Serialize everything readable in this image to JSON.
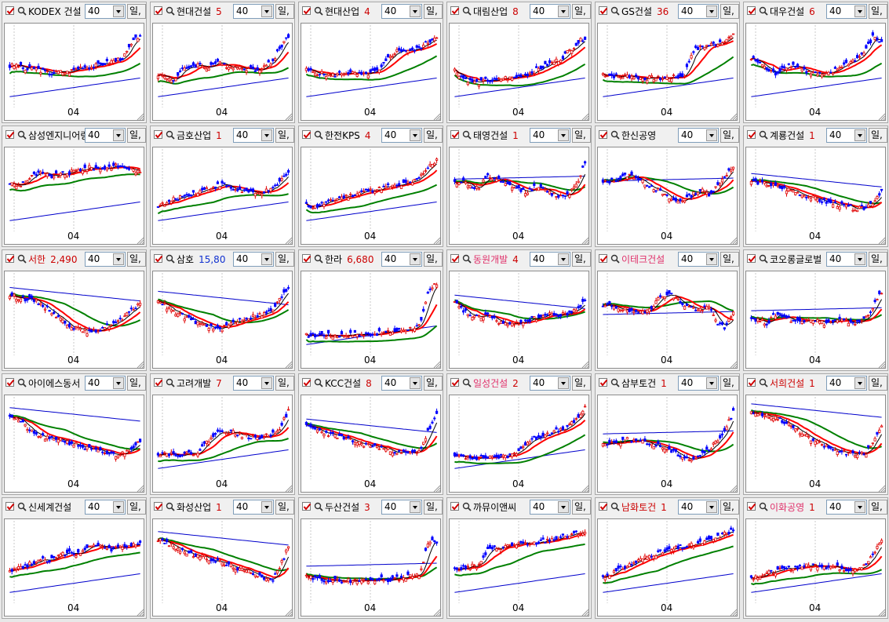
{
  "settings": {
    "period_value": "40",
    "period_button_label": "일,",
    "x_axis_label": "04",
    "colors": {
      "candle_up": "#e00000",
      "candle_down": "#0000ff",
      "ma_short": "#000000",
      "ma_red": "#ff0000",
      "ma_green": "#008000",
      "ma_blue": "#0000cc"
    }
  },
  "cells": [
    {
      "name": "KODEX 건설",
      "price": "",
      "name_color": "black",
      "price_color": "red",
      "shape": [
        50,
        52,
        45,
        48,
        44,
        40,
        43,
        42,
        46,
        50,
        49,
        52,
        55,
        58,
        62,
        80,
        92
      ],
      "trend": "up"
    },
    {
      "name": "현대건설",
      "price": "5",
      "name_color": "black",
      "price_color": "red",
      "shape": [
        40,
        35,
        32,
        45,
        50,
        52,
        48,
        55,
        52,
        50,
        49,
        47,
        45,
        50,
        55,
        75,
        90
      ],
      "trend": "up"
    },
    {
      "name": "현대산업",
      "price": "4",
      "name_color": "black",
      "price_color": "red",
      "shape": [
        45,
        42,
        40,
        38,
        40,
        42,
        40,
        38,
        42,
        44,
        60,
        70,
        72,
        70,
        75,
        82,
        90
      ],
      "trend": "up"
    },
    {
      "name": "대림산업",
      "price": "8",
      "name_color": "black",
      "price_color": "red",
      "shape": [
        45,
        35,
        30,
        28,
        32,
        30,
        35,
        34,
        38,
        40,
        45,
        50,
        55,
        60,
        70,
        80,
        88
      ],
      "trend": "up"
    },
    {
      "name": "GS건설",
      "price": "36",
      "name_color": "black",
      "price_color": "red",
      "shape": [
        40,
        38,
        36,
        38,
        36,
        34,
        35,
        34,
        35,
        36,
        38,
        70,
        75,
        78,
        80,
        85,
        90
      ],
      "trend": "up"
    },
    {
      "name": "대우건설",
      "price": "6",
      "name_color": "black",
      "price_color": "red",
      "shape": [
        60,
        55,
        45,
        40,
        50,
        52,
        48,
        42,
        40,
        38,
        42,
        50,
        55,
        60,
        70,
        90,
        80
      ],
      "trend": "up"
    },
    {
      "name": "삼성엔지니어링",
      "price": "",
      "name_color": "black",
      "price_color": "red",
      "shape": [
        60,
        55,
        62,
        70,
        72,
        68,
        70,
        72,
        75,
        78,
        80,
        78,
        80,
        82,
        80,
        78,
        72
      ],
      "trend": "up"
    },
    {
      "name": "금호산업",
      "price": "1",
      "name_color": "black",
      "price_color": "red",
      "shape": [
        30,
        32,
        38,
        42,
        45,
        48,
        52,
        55,
        58,
        52,
        50,
        48,
        45,
        48,
        50,
        62,
        72
      ],
      "trend": "up"
    },
    {
      "name": "한전KPS",
      "price": "4",
      "name_color": "black",
      "price_color": "red",
      "shape": [
        30,
        28,
        32,
        35,
        40,
        42,
        45,
        48,
        50,
        52,
        55,
        55,
        58,
        60,
        70,
        80,
        90
      ],
      "trend": "up"
    },
    {
      "name": "태영건설",
      "price": "1",
      "name_color": "black",
      "price_color": "red",
      "shape": [
        60,
        62,
        55,
        52,
        68,
        65,
        58,
        55,
        50,
        48,
        55,
        50,
        45,
        42,
        45,
        60,
        85
      ],
      "trend": "flat"
    },
    {
      "name": "한신공영",
      "price": "",
      "name_color": "black",
      "price_color": "red",
      "shape": [
        60,
        62,
        65,
        70,
        68,
        60,
        55,
        48,
        40,
        35,
        38,
        45,
        50,
        45,
        55,
        70,
        80
      ],
      "trend": "flat"
    },
    {
      "name": "계룡건설",
      "price": "1",
      "name_color": "black",
      "price_color": "red",
      "shape": [
        62,
        60,
        58,
        55,
        52,
        50,
        45,
        42,
        38,
        35,
        32,
        30,
        28,
        25,
        28,
        35,
        50
      ],
      "trend": "down"
    },
    {
      "name": "서한",
      "price": "2,490",
      "name_color": "red",
      "price_color": "red",
      "shape": [
        75,
        72,
        70,
        68,
        62,
        55,
        45,
        38,
        32,
        28,
        26,
        30,
        35,
        38,
        45,
        55,
        65
      ],
      "trend": "down"
    },
    {
      "name": "삼호",
      "price": "15,80",
      "name_color": "black",
      "price_color": "blue",
      "shape": [
        70,
        60,
        52,
        48,
        42,
        38,
        35,
        30,
        32,
        38,
        42,
        45,
        48,
        50,
        55,
        70,
        85
      ],
      "trend": "down"
    },
    {
      "name": "한라",
      "price": "6,680",
      "name_color": "black",
      "price_color": "red",
      "shape": [
        22,
        22,
        23,
        22,
        22,
        23,
        24,
        23,
        24,
        25,
        26,
        28,
        30,
        32,
        35,
        80,
        90
      ],
      "trend": "up"
    },
    {
      "name": "동원개발",
      "price": "4",
      "name_color": "pink",
      "price_color": "red",
      "shape": [
        65,
        55,
        48,
        45,
        50,
        42,
        38,
        35,
        40,
        42,
        45,
        48,
        50,
        48,
        52,
        55,
        70
      ],
      "trend": "down"
    },
    {
      "name": "이테크건설",
      "price": "",
      "name_color": "pink",
      "price_color": "red",
      "shape": [
        60,
        62,
        58,
        55,
        50,
        55,
        60,
        72,
        78,
        70,
        62,
        58,
        55,
        60,
        40,
        30,
        55
      ],
      "trend": "flat"
    },
    {
      "name": "코오롱글로벌",
      "price": "",
      "name_color": "black",
      "price_color": "red",
      "shape": [
        45,
        42,
        38,
        50,
        48,
        42,
        40,
        45,
        42,
        38,
        40,
        42,
        40,
        38,
        45,
        60,
        80
      ],
      "trend": "flat"
    },
    {
      "name": "아이에스동서",
      "price": "",
      "name_color": "black",
      "price_color": "red",
      "shape": [
        80,
        75,
        65,
        55,
        52,
        48,
        50,
        45,
        42,
        38,
        35,
        32,
        30,
        28,
        30,
        38,
        48
      ],
      "trend": "down"
    },
    {
      "name": "고려개발",
      "price": "7",
      "name_color": "black",
      "price_color": "red",
      "shape": [
        30,
        30,
        29,
        28,
        30,
        32,
        45,
        55,
        60,
        58,
        55,
        52,
        50,
        52,
        55,
        65,
        85
      ],
      "trend": "up"
    },
    {
      "name": "KCC건설",
      "price": "8",
      "name_color": "black",
      "price_color": "red",
      "shape": [
        65,
        62,
        58,
        55,
        52,
        48,
        45,
        42,
        40,
        38,
        35,
        32,
        30,
        30,
        35,
        60,
        80
      ],
      "trend": "down"
    },
    {
      "name": "일성건설",
      "price": "2",
      "name_color": "pink",
      "price_color": "red",
      "shape": [
        25,
        26,
        25,
        24,
        25,
        26,
        25,
        28,
        35,
        45,
        50,
        55,
        58,
        60,
        65,
        75,
        90
      ],
      "trend": "up"
    },
    {
      "name": "삼부토건",
      "price": "1",
      "name_color": "black",
      "price_color": "red",
      "shape": [
        42,
        44,
        45,
        48,
        46,
        44,
        42,
        40,
        35,
        30,
        25,
        22,
        28,
        35,
        45,
        60,
        85
      ],
      "trend": "flat"
    },
    {
      "name": "서희건설",
      "price": "1",
      "name_color": "red",
      "price_color": "red",
      "shape": [
        85,
        82,
        80,
        78,
        72,
        65,
        58,
        50,
        45,
        40,
        35,
        32,
        30,
        28,
        30,
        45,
        65
      ],
      "trend": "down"
    },
    {
      "name": "신세계건설",
      "price": "",
      "name_color": "black",
      "price_color": "red",
      "shape": [
        40,
        42,
        45,
        50,
        55,
        52,
        58,
        62,
        60,
        65,
        70,
        72,
        65,
        68,
        70,
        72,
        75
      ],
      "trend": "up"
    },
    {
      "name": "화성산업",
      "price": "1",
      "name_color": "black",
      "price_color": "red",
      "shape": [
        80,
        75,
        70,
        65,
        60,
        58,
        55,
        52,
        48,
        45,
        40,
        38,
        35,
        30,
        25,
        45,
        70
      ],
      "trend": "down"
    },
    {
      "name": "두산건설",
      "price": "3",
      "name_color": "black",
      "price_color": "red",
      "shape": [
        30,
        28,
        27,
        26,
        25,
        26,
        25,
        26,
        27,
        28,
        27,
        28,
        30,
        32,
        35,
        80,
        75
      ],
      "trend": "flat"
    },
    {
      "name": "까뮤이앤씨",
      "price": "",
      "name_color": "black",
      "price_color": "red",
      "shape": [
        40,
        42,
        44,
        45,
        65,
        68,
        70,
        72,
        75,
        72,
        75,
        78,
        80,
        82,
        85,
        88,
        90
      ],
      "trend": "up"
    },
    {
      "name": "남화토건",
      "price": "1",
      "name_color": "red",
      "price_color": "red",
      "shape": [
        30,
        35,
        40,
        45,
        50,
        55,
        60,
        62,
        65,
        68,
        70,
        72,
        75,
        78,
        82,
        88,
        92
      ],
      "trend": "up"
    },
    {
      "name": "이화공영",
      "price": "1",
      "name_color": "pink",
      "price_color": "red",
      "shape": [
        30,
        32,
        35,
        38,
        40,
        42,
        44,
        45,
        46,
        45,
        44,
        42,
        40,
        42,
        45,
        60,
        80
      ],
      "trend": "up"
    }
  ]
}
